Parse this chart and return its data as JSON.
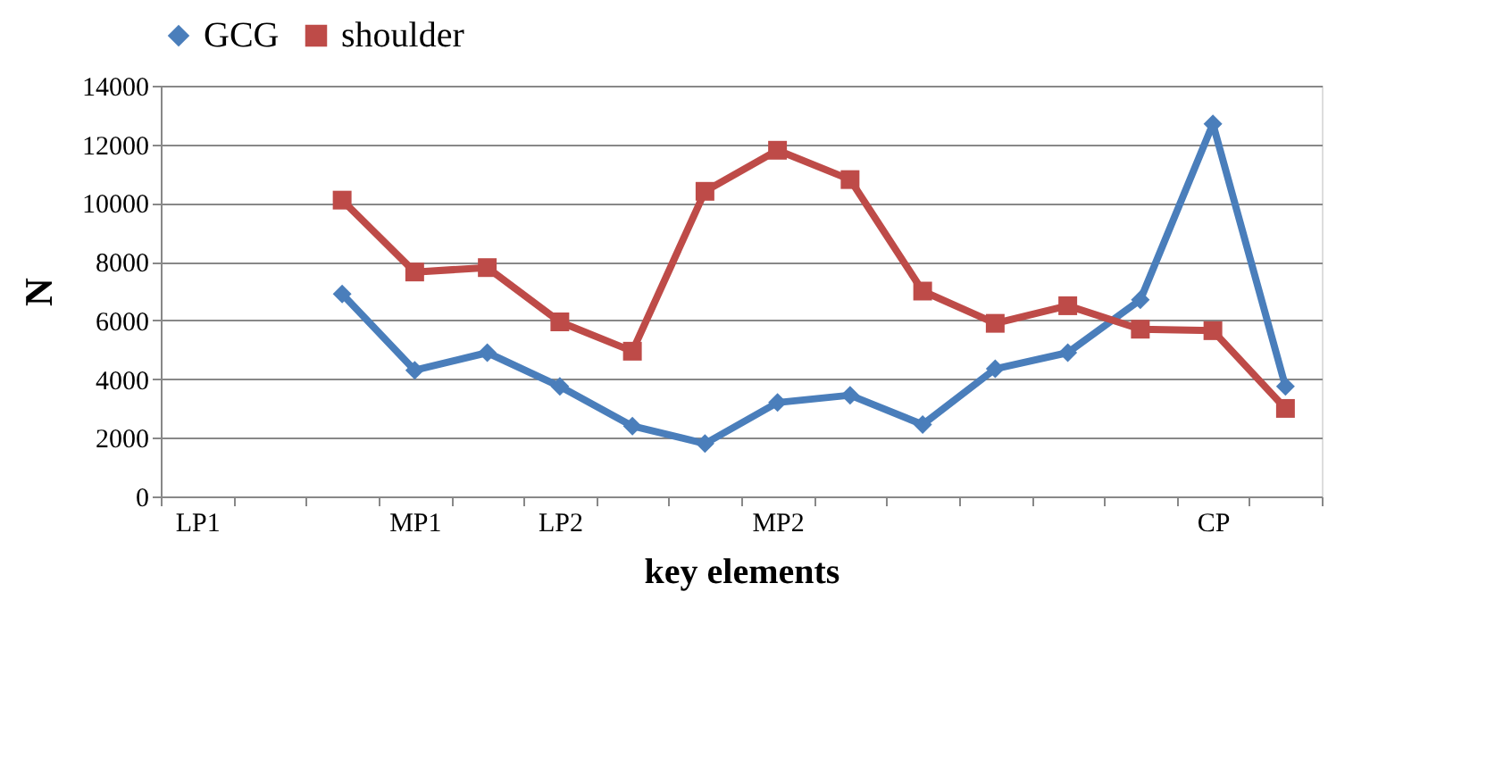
{
  "chart_data": {
    "type": "line",
    "xlabel": "key elements",
    "ylabel": "N",
    "categories": [
      "LP1",
      null,
      null,
      "MP1",
      null,
      "LP2",
      null,
      null,
      "MP2",
      null,
      null,
      null,
      null,
      null,
      "CP",
      null
    ],
    "series": [
      {
        "name": "GCG",
        "color": "#4a7ebb",
        "marker": "diamond",
        "values": [
          null,
          null,
          6900,
          4300,
          4900,
          3750,
          2400,
          1800,
          3200,
          3450,
          2450,
          4350,
          4900,
          6700,
          12700,
          3750
        ]
      },
      {
        "name": "shoulder",
        "color": "#be4b48",
        "marker": "square",
        "values": [
          null,
          null,
          10100,
          7650,
          7800,
          5950,
          4950,
          10400,
          11800,
          10800,
          7000,
          5900,
          6500,
          5700,
          5650,
          3000
        ]
      }
    ],
    "ylim": [
      0,
      14000
    ],
    "yticks": [
      0,
      2000,
      4000,
      6000,
      8000,
      10000,
      12000,
      14000
    ],
    "grid": "y",
    "legend": "top",
    "line_style": "solid"
  }
}
